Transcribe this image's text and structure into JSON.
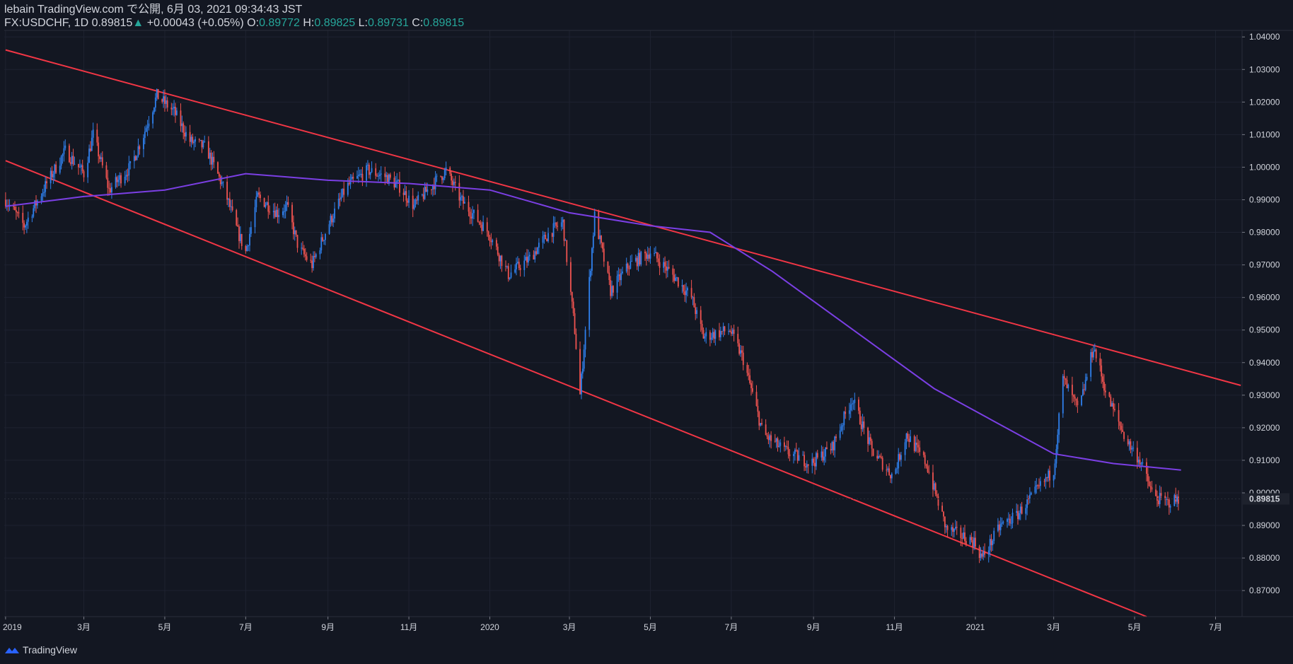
{
  "header": {
    "publish_line": "lebain TradingView.com で公開, 6月 03, 2021 09:34:43 JST",
    "symbol": "FX:USDCHF, 1D",
    "last": "0.89815",
    "arrow": "▲",
    "change": "+0.00043 (+0.05%)",
    "o_label": "O:",
    "o_value": "0.89772",
    "h_label": "H:",
    "h_value": "0.89825",
    "l_label": "L:",
    "l_value": "0.89731",
    "c_label": "C:",
    "c_value": "0.89815"
  },
  "footer": {
    "brand": "TradingView",
    "logo_icon": "tradingview-logo-icon"
  },
  "chart_data": {
    "type": "candlestick",
    "x_ticks": [
      "2019",
      "3月",
      "5月",
      "7月",
      "9月",
      "11月",
      "2020",
      "3月",
      "5月",
      "7月",
      "9月",
      "11月",
      "2021",
      "3月",
      "5月",
      "7月"
    ],
    "y_ticks": [
      "1.04000",
      "1.03000",
      "1.02000",
      "1.01000",
      "1.00000",
      "0.99000",
      "0.98000",
      "0.97000",
      "0.96000",
      "0.95000",
      "0.94000",
      "0.93000",
      "0.92000",
      "0.91000",
      "0.90000",
      "0.89000",
      "0.88000",
      "0.87000"
    ],
    "ylim": [
      0.862,
      1.042
    ],
    "last_price_label": "0.89815",
    "colors": {
      "up": "#2f80ed",
      "down": "#ef5350",
      "ma": "#7b3fe4",
      "trendline": "#f23645",
      "background": "#131722",
      "grid": "#1e2230"
    },
    "price_path": [
      [
        "2019-01-01",
        0.99
      ],
      [
        "2019-01-15",
        0.982
      ],
      [
        "2019-02-01",
        0.995
      ],
      [
        "2019-02-15",
        1.005
      ],
      [
        "2019-03-01",
        0.998
      ],
      [
        "2019-03-08",
        1.01
      ],
      [
        "2019-03-20",
        0.993
      ],
      [
        "2019-04-05",
        1.0
      ],
      [
        "2019-04-15",
        1.01
      ],
      [
        "2019-04-25",
        1.022
      ],
      [
        "2019-05-08",
        1.017
      ],
      [
        "2019-05-20",
        1.008
      ],
      [
        "2019-06-01",
        1.006
      ],
      [
        "2019-06-15",
        0.993
      ],
      [
        "2019-06-25",
        0.98
      ],
      [
        "2019-07-01",
        0.974
      ],
      [
        "2019-07-10",
        0.991
      ],
      [
        "2019-07-25",
        0.986
      ],
      [
        "2019-08-01",
        0.988
      ],
      [
        "2019-08-10",
        0.975
      ],
      [
        "2019-08-20",
        0.97
      ],
      [
        "2019-09-01",
        0.982
      ],
      [
        "2019-09-15",
        0.994
      ],
      [
        "2019-10-01",
        0.999
      ],
      [
        "2019-10-15",
        0.997
      ],
      [
        "2019-10-25",
        0.994
      ],
      [
        "2019-11-05",
        0.988
      ],
      [
        "2019-11-15",
        0.993
      ],
      [
        "2019-11-29",
        0.999
      ],
      [
        "2019-12-10",
        0.99
      ],
      [
        "2019-12-31",
        0.98
      ],
      [
        "2020-01-15",
        0.967
      ],
      [
        "2020-01-31",
        0.972
      ],
      [
        "2020-02-15",
        0.98
      ],
      [
        "2020-02-25",
        0.983
      ],
      [
        "2020-03-05",
        0.95
      ],
      [
        "2020-03-09",
        0.93
      ],
      [
        "2020-03-20",
        0.985
      ],
      [
        "2020-04-01",
        0.962
      ],
      [
        "2020-04-15",
        0.97
      ],
      [
        "2020-05-01",
        0.974
      ],
      [
        "2020-05-20",
        0.966
      ],
      [
        "2020-06-01",
        0.96
      ],
      [
        "2020-06-10",
        0.948
      ],
      [
        "2020-06-30",
        0.95
      ],
      [
        "2020-07-10",
        0.941
      ],
      [
        "2020-07-25",
        0.918
      ],
      [
        "2020-08-10",
        0.913
      ],
      [
        "2020-08-30",
        0.909
      ],
      [
        "2020-09-15",
        0.914
      ],
      [
        "2020-09-30",
        0.929
      ],
      [
        "2020-10-15",
        0.913
      ],
      [
        "2020-10-31",
        0.905
      ],
      [
        "2020-11-10",
        0.918
      ],
      [
        "2020-11-25",
        0.909
      ],
      [
        "2020-12-10",
        0.889
      ],
      [
        "2020-12-31",
        0.885
      ],
      [
        "2021-01-06",
        0.88
      ],
      [
        "2021-01-20",
        0.89
      ],
      [
        "2021-02-01",
        0.893
      ],
      [
        "2021-02-15",
        0.9
      ],
      [
        "2021-03-01",
        0.907
      ],
      [
        "2021-03-08",
        0.935
      ],
      [
        "2021-03-20",
        0.925
      ],
      [
        "2021-03-31",
        0.945
      ],
      [
        "2021-04-10",
        0.93
      ],
      [
        "2021-04-25",
        0.916
      ],
      [
        "2021-05-05",
        0.91
      ],
      [
        "2021-05-15",
        0.899
      ],
      [
        "2021-05-25",
        0.897
      ],
      [
        "2021-06-03",
        0.898
      ]
    ],
    "moving_average": [
      [
        "2019-01-01",
        0.988
      ],
      [
        "2019-03-01",
        0.991
      ],
      [
        "2019-05-01",
        0.993
      ],
      [
        "2019-07-01",
        0.998
      ],
      [
        "2019-09-01",
        0.996
      ],
      [
        "2019-11-01",
        0.995
      ],
      [
        "2020-01-01",
        0.993
      ],
      [
        "2020-03-01",
        0.986
      ],
      [
        "2020-05-01",
        0.982
      ],
      [
        "2020-06-15",
        0.98
      ],
      [
        "2020-08-01",
        0.968
      ],
      [
        "2020-10-01",
        0.95
      ],
      [
        "2020-12-01",
        0.932
      ],
      [
        "2021-01-15",
        0.922
      ],
      [
        "2021-03-01",
        0.912
      ],
      [
        "2021-04-15",
        0.909
      ],
      [
        "2021-06-05",
        0.907
      ]
    ],
    "trendlines": [
      {
        "name": "upper",
        "points": [
          [
            "2019-01-01",
            1.036
          ],
          [
            "2021-07-20",
            0.933
          ]
        ]
      },
      {
        "name": "lower",
        "points": [
          [
            "2019-01-01",
            1.002
          ],
          [
            "2021-05-10",
            0.862
          ]
        ]
      }
    ]
  }
}
